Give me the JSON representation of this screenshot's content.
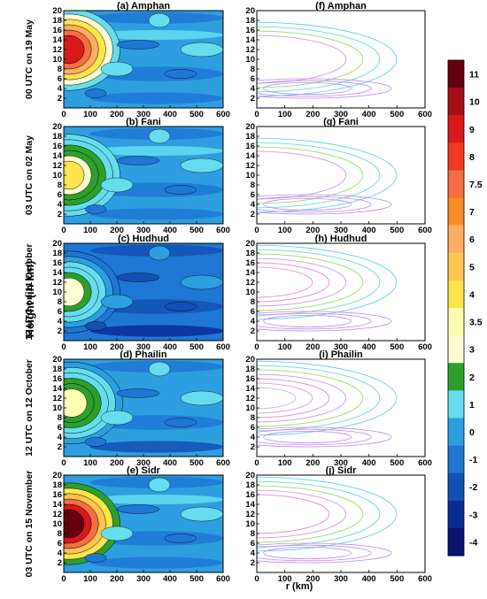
{
  "y_axis_label": "Height (in km)",
  "x_axis_label": "r (km)",
  "colorbar": {
    "ticks": [
      "11",
      "10",
      "9",
      "8",
      "7.5",
      "7",
      "6",
      "5",
      "4",
      "3.5",
      "3",
      "2",
      "1",
      "0",
      "-1",
      "-2",
      "-3",
      "-4"
    ],
    "colors": [
      "#67000d",
      "#a50f15",
      "#d7191c",
      "#f03b20",
      "#f46d43",
      "#fb8d29",
      "#fdae61",
      "#fec44f",
      "#ffe54d",
      "#ffffb2",
      "#ffffd4",
      "#2ca02c",
      "#66ddee",
      "#2d9fe0",
      "#1f77d4",
      "#1450b4",
      "#0a2c96",
      "#08146e"
    ]
  },
  "chart_data": [
    {
      "type": "heatmap",
      "title": "(a) Amphan",
      "row_label": "00 UTC on 19 May",
      "column": "left",
      "xlim": [
        0,
        600
      ],
      "ylim": [
        0,
        20
      ],
      "xticks": [
        0,
        100,
        200,
        300,
        400,
        500,
        600
      ],
      "yticks": [
        2,
        4,
        6,
        8,
        10,
        12,
        14,
        16,
        18,
        20
      ],
      "core_value": 9,
      "core_r": 20,
      "core_height": 12,
      "background_value": 0.5
    },
    {
      "type": "heatmap",
      "title": "(b) Fani",
      "row_label": "03 UTC on 02 May",
      "column": "left",
      "xlim": [
        0,
        600
      ],
      "ylim": [
        0,
        20
      ],
      "xticks": [
        0,
        100,
        200,
        300,
        400,
        500,
        600
      ],
      "yticks": [
        2,
        4,
        6,
        8,
        10,
        12,
        14,
        16,
        18,
        20
      ],
      "core_value": 4,
      "core_r": 20,
      "core_height": 10,
      "background_value": 0.5
    },
    {
      "type": "heatmap",
      "title": "(c) Hudhud",
      "row_label": "12 UTC on 11 October",
      "column": "left",
      "xlim": [
        0,
        600
      ],
      "ylim": [
        0,
        20
      ],
      "xticks": [
        0,
        100,
        200,
        300,
        400,
        500,
        600
      ],
      "yticks": [
        2,
        4,
        6,
        8,
        10,
        12,
        14,
        16,
        18,
        20
      ],
      "core_value": 3,
      "core_r": 20,
      "core_height": 10,
      "background_value": -1
    },
    {
      "type": "heatmap",
      "title": "(d) Phailin",
      "row_label": "12 UTC on 12  October",
      "column": "left",
      "xlim": [
        0,
        600
      ],
      "ylim": [
        0,
        20
      ],
      "xticks": [
        0,
        100,
        200,
        300,
        400,
        500,
        600
      ],
      "yticks": [
        2,
        4,
        6,
        8,
        10,
        12,
        14,
        16,
        18,
        20
      ],
      "core_value": 3.5,
      "core_r": 30,
      "core_height": 11,
      "background_value": 0
    },
    {
      "type": "heatmap",
      "title": "(e) Sidr",
      "row_label": "03  UTC on 15 November",
      "column": "left",
      "xlim": [
        0,
        600
      ],
      "ylim": [
        0,
        20
      ],
      "xticks": [
        0,
        100,
        200,
        300,
        400,
        500,
        600
      ],
      "yticks": [
        2,
        4,
        6,
        8,
        10,
        12,
        14,
        16,
        18,
        20
      ],
      "core_value": 11,
      "core_r": 20,
      "core_height": 10,
      "background_value": 0.5
    },
    {
      "type": "heatmap",
      "title": "(f) Amphan",
      "column": "right",
      "xlim": [
        0,
        600
      ],
      "ylim": [
        0,
        20
      ],
      "xticks": [
        0,
        100,
        200,
        300,
        400,
        500,
        600
      ],
      "yticks": [
        2,
        4,
        6,
        8,
        10,
        12,
        14,
        16,
        18,
        20
      ],
      "contour_center_r": 20,
      "contour_center_height": 10,
      "contour_count": 4
    },
    {
      "type": "heatmap",
      "title": "(g) Fani",
      "column": "right",
      "xlim": [
        0,
        600
      ],
      "ylim": [
        0,
        20
      ],
      "xticks": [
        0,
        100,
        200,
        300,
        400,
        500,
        600
      ],
      "yticks": [
        2,
        4,
        6,
        8,
        10,
        12,
        14,
        16,
        18,
        20
      ],
      "contour_center_r": 20,
      "contour_center_height": 10,
      "contour_count": 4
    },
    {
      "type": "heatmap",
      "title": "(h) Hudhud",
      "column": "right",
      "xlim": [
        0,
        600
      ],
      "ylim": [
        0,
        20
      ],
      "xticks": [
        0,
        100,
        200,
        300,
        400,
        500,
        600
      ],
      "yticks": [
        2,
        4,
        6,
        8,
        10,
        12,
        14,
        16,
        18,
        20
      ],
      "contour_center_r": 20,
      "contour_center_height": 12,
      "contour_count": 6
    },
    {
      "type": "heatmap",
      "title": "(i) Phailin",
      "column": "right",
      "xlim": [
        0,
        600
      ],
      "ylim": [
        0,
        20
      ],
      "xticks": [
        0,
        100,
        200,
        300,
        400,
        500,
        600
      ],
      "yticks": [
        2,
        4,
        6,
        8,
        10,
        12,
        14,
        16,
        18,
        20
      ],
      "contour_center_r": 20,
      "contour_center_height": 12,
      "contour_count": 7
    },
    {
      "type": "heatmap",
      "title": "(j) Sidr",
      "column": "right",
      "xlim": [
        0,
        600
      ],
      "ylim": [
        0,
        20
      ],
      "xticks": [
        0,
        100,
        200,
        300,
        400,
        500,
        600
      ],
      "yticks": [
        2,
        4,
        6,
        8,
        10,
        12,
        14,
        16,
        18,
        20
      ],
      "contour_center_r": 20,
      "contour_center_height": 12,
      "contour_count": 5
    }
  ]
}
